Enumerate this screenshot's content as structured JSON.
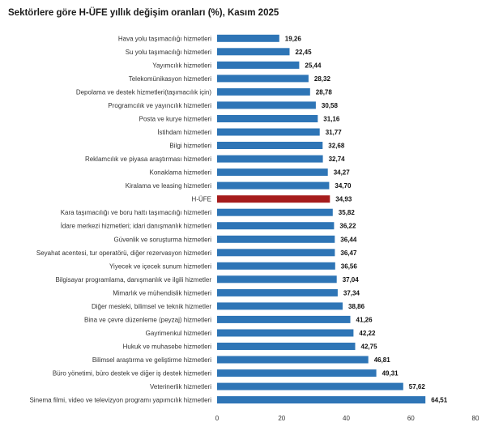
{
  "chart_data": {
    "type": "bar",
    "orientation": "horizontal",
    "title": "Sektörlere göre H-ÜFE yıllık değişim oranları (%), Kasım 2025",
    "categories": [
      "Hava yolu taşımacılığı hizmetleri",
      "Su yolu taşımacılığı hizmetleri",
      "Yayımcılık hizmetleri",
      "Telekomünikasyon hizmetleri",
      "Depolama ve destek hizmetleri(taşımacılık için)",
      "Programcılık ve yayıncılık hizmetleri",
      "Posta ve kurye hizmetleri",
      "İstihdam hizmetleri",
      "Bilgi hizmetleri",
      "Reklamcılık ve piyasa araştırması hizmetleri",
      "Konaklama hizmetleri",
      "Kiralama ve leasing hizmetleri",
      "H-ÜFE",
      "Kara taşımacılığı ve boru hattı taşımacılığı hizmetleri",
      "İdare merkezi hizmetleri; idari danışmanlık hizmetleri",
      "Güvenlik ve soruşturma hizmetleri",
      "Seyahat acentesi, tur operatörü, diğer rezervasyon hizmetleri",
      "Yiyecek ve içecek sunum hizmetleri",
      "Bilgisayar programlama, danışmanlık ve ilgili hizmetler",
      "Mimarlık ve mühendislik hizmetleri",
      "Diğer mesleki, bilimsel ve teknik hizmetler",
      "Bina ve çevre düzenleme (peyzaj) hizmetleri",
      "Gayrimenkul hizmetleri",
      "Hukuk ve muhasebe hizmetleri",
      "Bilimsel araştırma ve geliştirme hizmetleri",
      "Büro yönetimi, büro destek ve diğer iş destek hizmetleri",
      "Veterinerlik hizmetleri",
      "Sinema filmi, video ve televizyon programı yapımcılık hizmetleri"
    ],
    "values": [
      19.26,
      22.45,
      25.44,
      28.32,
      28.78,
      30.58,
      31.16,
      31.77,
      32.68,
      32.74,
      34.27,
      34.7,
      34.93,
      35.82,
      36.22,
      36.44,
      36.47,
      36.56,
      37.04,
      37.34,
      38.86,
      41.26,
      42.22,
      42.75,
      46.81,
      49.31,
      57.62,
      64.51
    ],
    "value_labels": [
      "19,26",
      "22,45",
      "25,44",
      "28,32",
      "28,78",
      "30,58",
      "31,16",
      "31,77",
      "32,68",
      "32,74",
      "34,27",
      "34,70",
      "34,93",
      "35,82",
      "36,22",
      "36,44",
      "36,47",
      "36,56",
      "37,04",
      "37,34",
      "38,86",
      "41,26",
      "42,22",
      "42,75",
      "46,81",
      "49,31",
      "57,62",
      "64,51"
    ],
    "highlight_category": "H-ÜFE",
    "xlim": [
      0,
      80
    ],
    "xticks": [
      "0",
      "20",
      "40",
      "60",
      "80"
    ],
    "grid": false,
    "legend": "none",
    "colors": {
      "bar": "#2e75b6",
      "highlight": "#a61c1c"
    }
  }
}
